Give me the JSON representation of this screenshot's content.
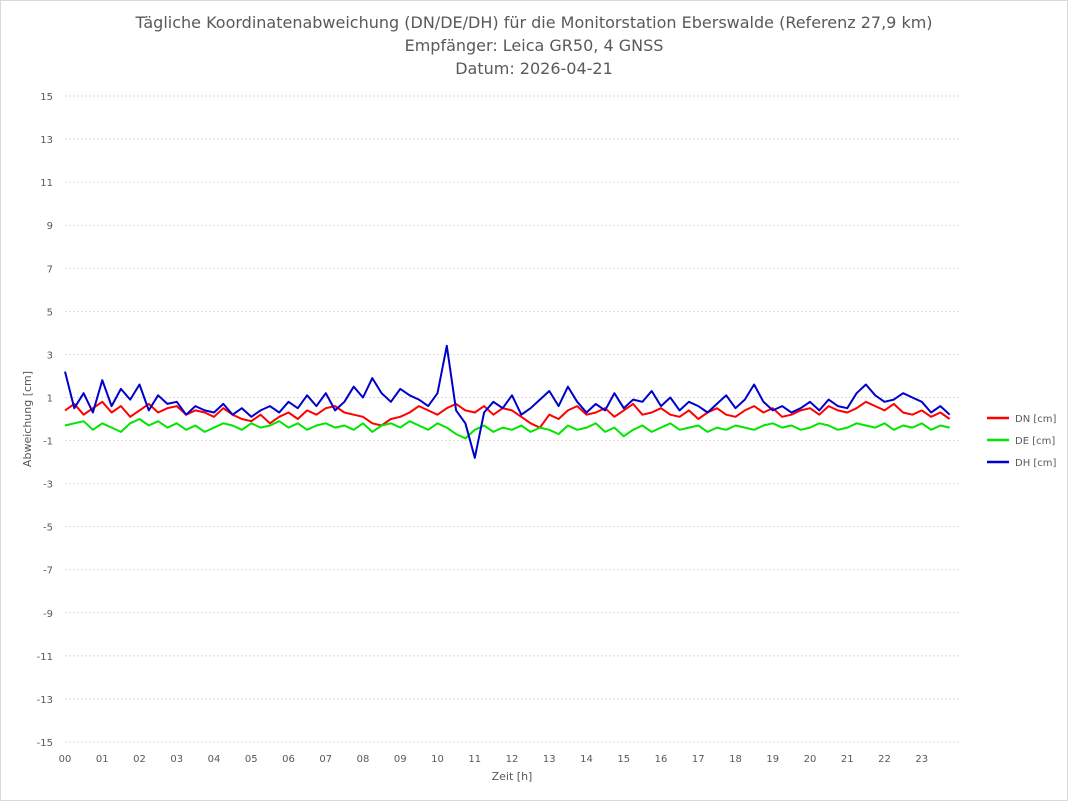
{
  "chart_data": {
    "type": "line",
    "title_lines": [
      "Tägliche Koordinatenabweichung (DN/DE/DH) für die Monitorstation Eberswalde (Referenz 27,9 km)",
      "Empfänger: Leica GR50, 4 GNSS",
      "Datum: 2026-04-21"
    ],
    "xlabel": "Zeit [h]",
    "ylabel": "Abweichung [cm]",
    "x_ticks": [
      "00",
      "01",
      "02",
      "03",
      "04",
      "05",
      "06",
      "07",
      "08",
      "09",
      "10",
      "11",
      "12",
      "13",
      "14",
      "15",
      "16",
      "17",
      "18",
      "19",
      "20",
      "21",
      "22",
      "23"
    ],
    "y_ticks": [
      "15",
      "13",
      "11",
      "9",
      "7",
      "5",
      "3",
      "1",
      "-1",
      "-3",
      "-5",
      "-7",
      "-9",
      "-11",
      "-13",
      "-15"
    ],
    "xlim": [
      0,
      24
    ],
    "ylim": [
      -15,
      15
    ],
    "grid": "horizontal dotted",
    "legend_position": "right",
    "x": [
      0,
      0.25,
      0.5,
      0.75,
      1,
      1.25,
      1.5,
      1.75,
      2,
      2.25,
      2.5,
      2.75,
      3,
      3.25,
      3.5,
      3.75,
      4,
      4.25,
      4.5,
      4.75,
      5,
      5.25,
      5.5,
      5.75,
      6,
      6.25,
      6.5,
      6.75,
      7,
      7.25,
      7.5,
      7.75,
      8,
      8.25,
      8.5,
      8.75,
      9,
      9.25,
      9.5,
      9.75,
      10,
      10.25,
      10.5,
      10.75,
      11,
      11.25,
      11.5,
      11.75,
      12,
      12.25,
      12.5,
      12.75,
      13,
      13.25,
      13.5,
      13.75,
      14,
      14.25,
      14.5,
      14.75,
      15,
      15.25,
      15.5,
      15.75,
      16,
      16.25,
      16.5,
      16.75,
      17,
      17.25,
      17.5,
      17.75,
      18,
      18.25,
      18.5,
      18.75,
      19,
      19.25,
      19.5,
      19.75,
      20,
      20.25,
      20.5,
      20.75,
      21,
      21.25,
      21.5,
      21.75,
      22,
      22.25,
      22.5,
      22.75,
      23,
      23.25,
      23.5,
      23.75
    ],
    "series": [
      {
        "name": "DN [cm]",
        "color": "#ff0000",
        "values": [
          0.4,
          0.7,
          0.2,
          0.5,
          0.8,
          0.3,
          0.6,
          0.1,
          0.4,
          0.7,
          0.3,
          0.5,
          0.6,
          0.2,
          0.4,
          0.3,
          0.1,
          0.5,
          0.2,
          0.0,
          -0.1,
          0.2,
          -0.2,
          0.1,
          0.3,
          0.0,
          0.4,
          0.2,
          0.5,
          0.6,
          0.3,
          0.2,
          0.1,
          -0.2,
          -0.3,
          0.0,
          0.1,
          0.3,
          0.6,
          0.4,
          0.2,
          0.5,
          0.7,
          0.4,
          0.3,
          0.6,
          0.2,
          0.5,
          0.4,
          0.1,
          -0.2,
          -0.4,
          0.2,
          0.0,
          0.4,
          0.6,
          0.2,
          0.3,
          0.5,
          0.1,
          0.4,
          0.7,
          0.2,
          0.3,
          0.5,
          0.2,
          0.1,
          0.4,
          0.0,
          0.3,
          0.5,
          0.2,
          0.1,
          0.4,
          0.6,
          0.3,
          0.5,
          0.1,
          0.2,
          0.4,
          0.5,
          0.2,
          0.6,
          0.4,
          0.3,
          0.5,
          0.8,
          0.6,
          0.4,
          0.7,
          0.3,
          0.2,
          0.4,
          0.1,
          0.3,
          0.0
        ]
      },
      {
        "name": "DE [cm]",
        "color": "#00e600",
        "values": [
          -0.3,
          -0.2,
          -0.1,
          -0.5,
          -0.2,
          -0.4,
          -0.6,
          -0.2,
          0.0,
          -0.3,
          -0.1,
          -0.4,
          -0.2,
          -0.5,
          -0.3,
          -0.6,
          -0.4,
          -0.2,
          -0.3,
          -0.5,
          -0.2,
          -0.4,
          -0.3,
          -0.1,
          -0.4,
          -0.2,
          -0.5,
          -0.3,
          -0.2,
          -0.4,
          -0.3,
          -0.5,
          -0.2,
          -0.6,
          -0.3,
          -0.2,
          -0.4,
          -0.1,
          -0.3,
          -0.5,
          -0.2,
          -0.4,
          -0.7,
          -0.9,
          -0.5,
          -0.3,
          -0.6,
          -0.4,
          -0.5,
          -0.3,
          -0.6,
          -0.4,
          -0.5,
          -0.7,
          -0.3,
          -0.5,
          -0.4,
          -0.2,
          -0.6,
          -0.4,
          -0.8,
          -0.5,
          -0.3,
          -0.6,
          -0.4,
          -0.2,
          -0.5,
          -0.4,
          -0.3,
          -0.6,
          -0.4,
          -0.5,
          -0.3,
          -0.4,
          -0.5,
          -0.3,
          -0.2,
          -0.4,
          -0.3,
          -0.5,
          -0.4,
          -0.2,
          -0.3,
          -0.5,
          -0.4,
          -0.2,
          -0.3,
          -0.4,
          -0.2,
          -0.5,
          -0.3,
          -0.4,
          -0.2,
          -0.5,
          -0.3,
          -0.4
        ]
      },
      {
        "name": "DH [cm]",
        "color": "#0000cc",
        "values": [
          2.2,
          0.5,
          1.2,
          0.3,
          1.8,
          0.6,
          1.4,
          0.9,
          1.6,
          0.4,
          1.1,
          0.7,
          0.8,
          0.2,
          0.6,
          0.4,
          0.3,
          0.7,
          0.2,
          0.5,
          0.1,
          0.4,
          0.6,
          0.3,
          0.8,
          0.5,
          1.1,
          0.6,
          1.2,
          0.4,
          0.8,
          1.5,
          1.0,
          1.9,
          1.2,
          0.8,
          1.4,
          1.1,
          0.9,
          0.6,
          1.2,
          3.4,
          0.4,
          -0.2,
          -1.8,
          0.3,
          0.8,
          0.5,
          1.1,
          0.2,
          0.5,
          0.9,
          1.3,
          0.6,
          1.5,
          0.8,
          0.3,
          0.7,
          0.4,
          1.2,
          0.5,
          0.9,
          0.8,
          1.3,
          0.6,
          1.0,
          0.4,
          0.8,
          0.6,
          0.3,
          0.7,
          1.1,
          0.5,
          0.9,
          1.6,
          0.8,
          0.4,
          0.6,
          0.3,
          0.5,
          0.8,
          0.4,
          0.9,
          0.6,
          0.5,
          1.2,
          1.6,
          1.1,
          0.8,
          0.9,
          1.2,
          1.0,
          0.8,
          0.3,
          0.6,
          0.2
        ]
      }
    ]
  }
}
